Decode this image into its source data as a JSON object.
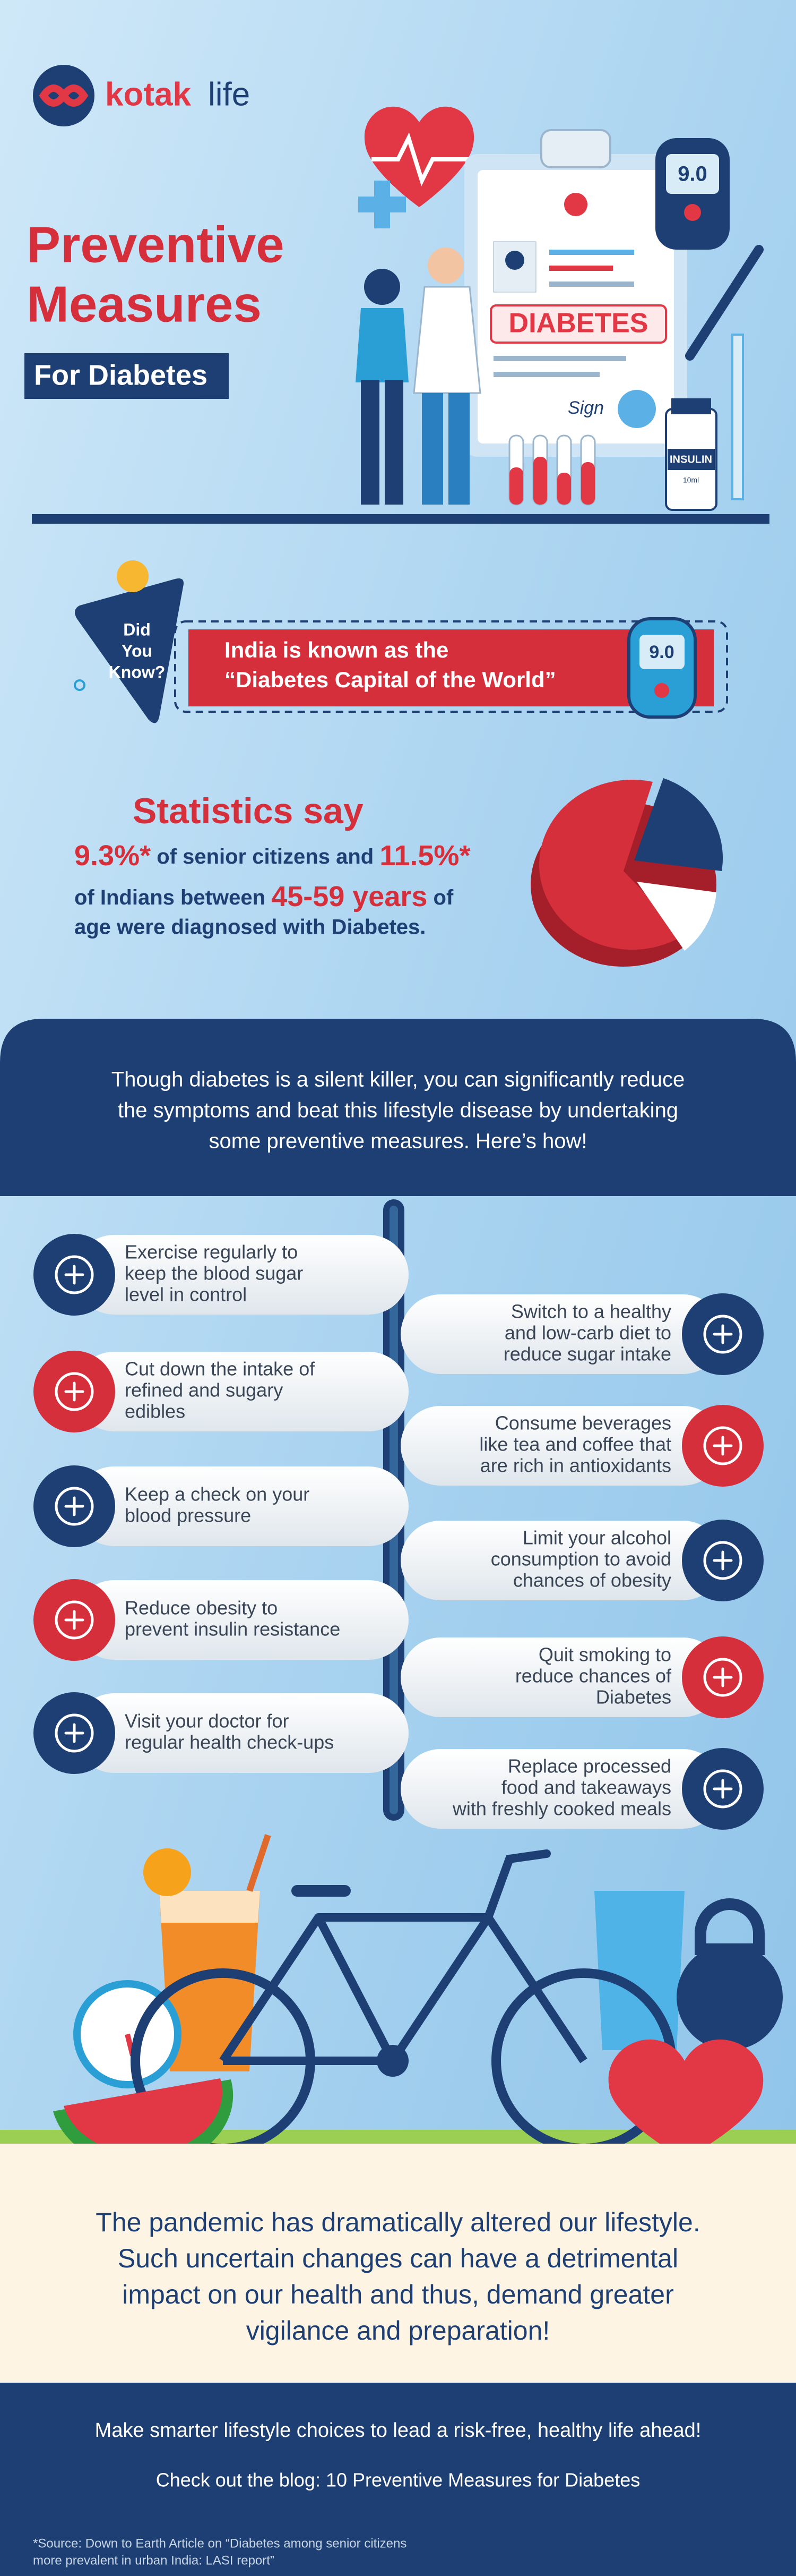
{
  "header": {
    "logo_brand": "kotak",
    "logo_product": "life",
    "title_line1": "Preventive",
    "title_line2": "Measures",
    "subtitle": "For Diabetes"
  },
  "illustration": {
    "clipboard_label": "DIABETES",
    "signature": "Sign",
    "meter_reading": "9.0",
    "vial_label": "INSULIN",
    "vial_volume": "10ml"
  },
  "did_you_know": {
    "badge": [
      "Did",
      "You",
      "Know?"
    ],
    "text": [
      "India is known as the",
      "“Diabetes Capital of the World”"
    ],
    "meter_reading": "9.0"
  },
  "statistics": {
    "heading": "Statistics say",
    "line1": [
      "9.3%*",
      " of senior citizens and ",
      "11.5%*"
    ],
    "line2": [
      "of Indians between ",
      "45-59 years",
      " of"
    ],
    "line3": "age were diagnosed with Diabetes."
  },
  "intro": [
    "Though diabetes is a silent killer, you can significantly reduce",
    "the symptoms and beat this lifestyle disease by undertaking",
    "some preventive measures. Here’s how!"
  ],
  "tips_left": [
    {
      "lines": [
        "Exercise regularly to",
        "keep the blood sugar",
        "level in control"
      ]
    },
    {
      "lines": [
        "Cut down the intake of",
        "refined and sugary",
        "edibles"
      ]
    },
    {
      "lines": [
        "Keep a check on your",
        "blood pressure"
      ]
    },
    {
      "lines": [
        "Reduce obesity to",
        "prevent insulin resistance"
      ]
    },
    {
      "lines": [
        "Visit your doctor for",
        "regular health check-ups"
      ]
    }
  ],
  "tips_right": [
    {
      "lines": [
        "Switch to a healthy",
        "and low-carb diet to",
        "reduce sugar intake"
      ]
    },
    {
      "lines": [
        "Consume beverages",
        "like tea and coffee that",
        "are rich in antioxidants"
      ]
    },
    {
      "lines": [
        "Limit your alcohol",
        "consumption to avoid",
        "chances of obesity"
      ]
    },
    {
      "lines": [
        "Quit smoking to",
        "reduce chances of",
        "Diabetes"
      ]
    },
    {
      "lines": [
        "Replace processed",
        "food and takeaways",
        "with freshly cooked meals"
      ]
    }
  ],
  "closing": [
    "The pandemic has dramatically altered our lifestyle.",
    "Such uncertain changes can have a detrimental",
    "impact on our health and thus, demand greater",
    "vigilance and preparation!"
  ],
  "footer": {
    "cta": "Make smarter lifestyle choices to lead a risk-free, healthy life ahead!",
    "blog": "Check out the blog: 10 Preventive Measures for Diabetes",
    "source": [
      "*Source: Down to Earth Article on “Diabetes among senior citizens",
      "more prevalent in urban India: LASI report”"
    ]
  }
}
